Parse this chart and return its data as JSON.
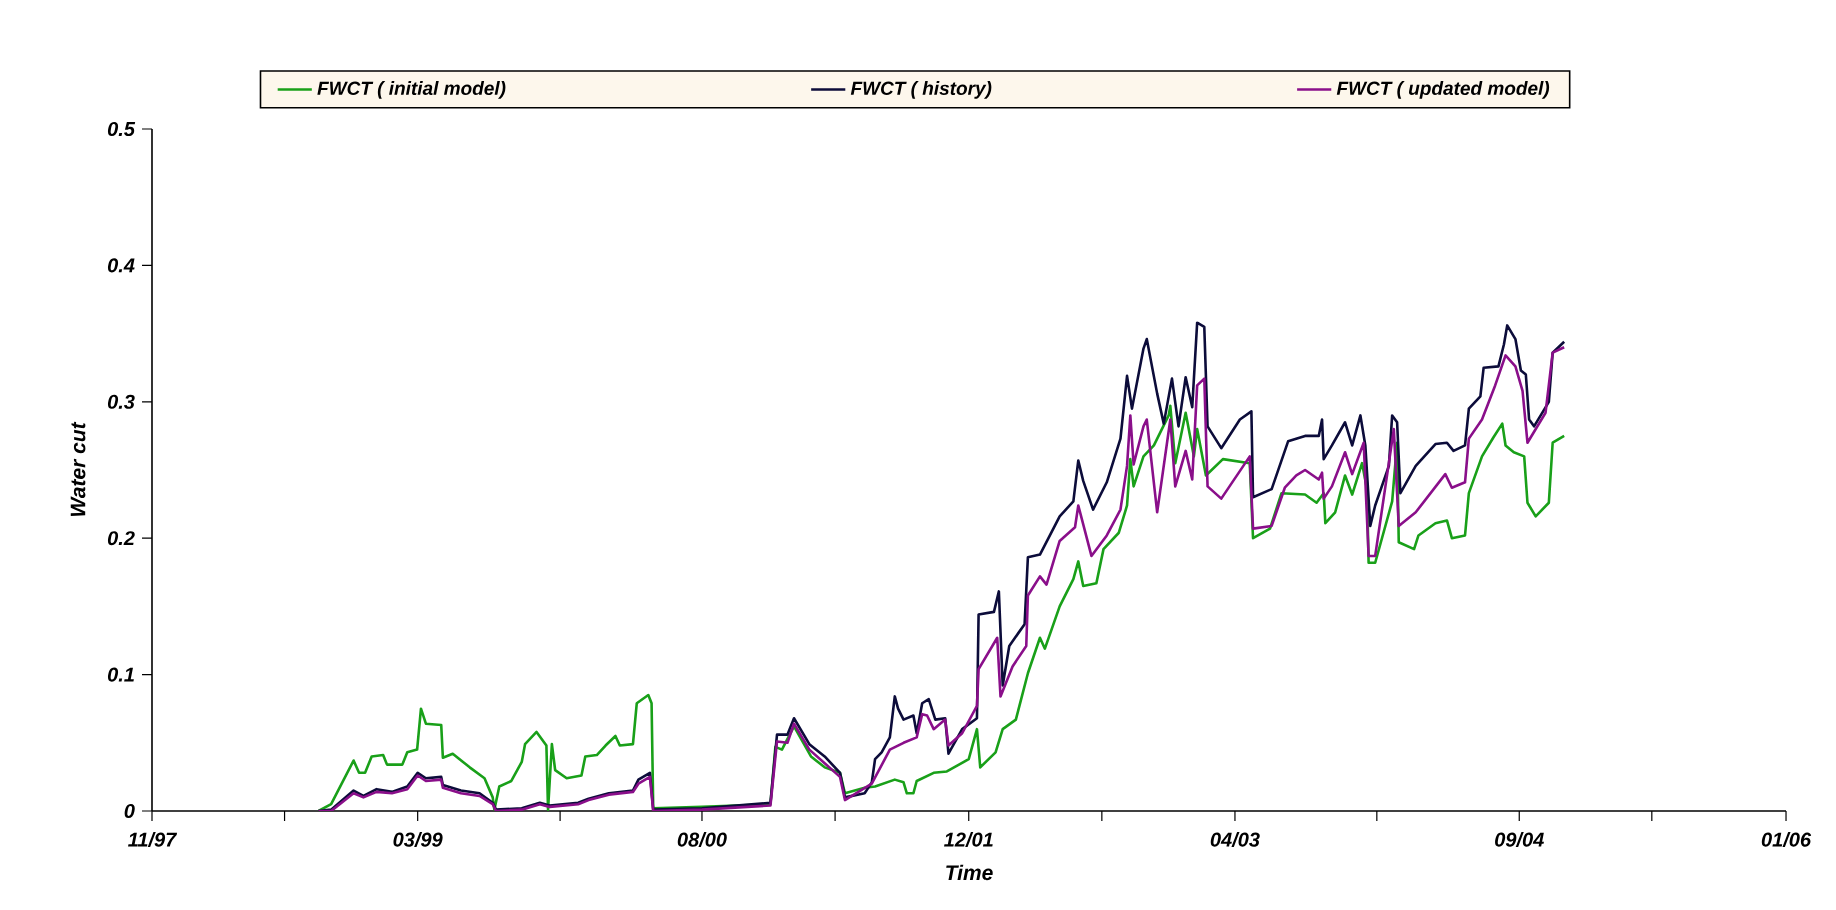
{
  "chart_data": {
    "type": "line",
    "xlabel": "Time",
    "ylabel": "Water cut",
    "legend": "top",
    "marker": "none",
    "line_style": "solid",
    "grid": false,
    "xlim": [
      "1997-11-01",
      "2006-01-01"
    ],
    "xticks": [
      {
        "value": "1997-11-01",
        "label": "11/97"
      },
      {
        "value": "1998-07-01",
        "label": null
      },
      {
        "value": "1999-03-01",
        "label": "03/99"
      },
      {
        "value": "1999-11-16",
        "label": null
      },
      {
        "value": "2000-08-01",
        "label": "08/00"
      },
      {
        "value": "2001-04-01",
        "label": null
      },
      {
        "value": "2001-12-01",
        "label": "12/01"
      },
      {
        "value": "2002-08-01",
        "label": null
      },
      {
        "value": "2003-04-01",
        "label": "04/03"
      },
      {
        "value": "2003-12-16",
        "label": null
      },
      {
        "value": "2004-09-01",
        "label": "09/04"
      },
      {
        "value": "2005-05-01",
        "label": null
      },
      {
        "value": "2006-01-01",
        "label": "01/06"
      }
    ],
    "ylim": [
      0,
      0.5
    ],
    "yticks": [
      0,
      0.1,
      0.2,
      0.3,
      0.4,
      0.5
    ],
    "series": [
      {
        "name": "FWCT ( initial model)",
        "color": "#19a019",
        "x": [
          "1998-09-01",
          "1998-09-24",
          "1998-11-04",
          "1998-11-14",
          "1998-11-25",
          "1998-12-07",
          "1998-12-28",
          "1999-01-04",
          "1999-02-01",
          "1999-02-10",
          "1999-02-28",
          "1999-03-07",
          "1999-03-16",
          "1999-04-13",
          "1999-04-16",
          "1999-05-04",
          "1999-06-04",
          "1999-07-01",
          "1999-07-16",
          "1999-07-19",
          "1999-07-28",
          "1999-08-19",
          "1999-09-07",
          "1999-09-13",
          "1999-10-04",
          "1999-10-22",
          "1999-10-25",
          "1999-11-01",
          "1999-11-07",
          "1999-11-28",
          "1999-12-25",
          "2000-01-01",
          "2000-01-22",
          "2000-02-07",
          "2000-02-25",
          "2000-03-04",
          "2000-03-28",
          "2000-04-04",
          "2000-04-25",
          "2000-05-01",
          "2000-05-04",
          "2000-08-01",
          "2000-12-04",
          "2000-12-13",
          "2000-12-25",
          "2001-01-16",
          "2001-02-16",
          "2001-03-13",
          "2001-04-10",
          "2001-04-19",
          "2001-05-25",
          "2001-06-13",
          "2001-07-19",
          "2001-08-04",
          "2001-08-10",
          "2001-08-22",
          "2001-08-28",
          "2001-09-28",
          "2001-10-22",
          "2001-12-01",
          "2001-12-16",
          "2001-12-22",
          "2002-01-19",
          "2002-02-01",
          "2002-02-25",
          "2002-03-19",
          "2002-04-10",
          "2002-04-19",
          "2002-05-16",
          "2002-06-10",
          "2002-06-19",
          "2002-06-28",
          "2002-07-22",
          "2002-08-04",
          "2002-09-01",
          "2002-09-16",
          "2002-09-22",
          "2002-09-28",
          "2002-10-16",
          "2002-11-04",
          "2002-12-01",
          "2002-12-04",
          "2002-12-13",
          "2003-01-01",
          "2003-01-16",
          "2003-01-22",
          "2003-02-07",
          "2003-03-10",
          "2003-04-28",
          "2003-05-04",
          "2003-06-04",
          "2003-06-25",
          "2003-08-07",
          "2003-08-28",
          "2003-09-10",
          "2003-09-13",
          "2003-10-01",
          "2003-10-19",
          "2003-11-01",
          "2003-11-19",
          "2003-11-28",
          "2003-12-01",
          "2003-12-13",
          "2004-01-13",
          "2004-01-22",
          "2004-01-25",
          "2004-02-22",
          "2004-03-01",
          "2004-04-01",
          "2004-04-22",
          "2004-05-01",
          "2004-05-25",
          "2004-06-01",
          "2004-06-25",
          "2004-07-16",
          "2004-08-01",
          "2004-08-07",
          "2004-08-22",
          "2004-09-10",
          "2004-09-16",
          "2004-10-01",
          "2004-10-25",
          "2004-11-01",
          "2004-11-22"
        ],
        "values": [
          0,
          0.005,
          0.037,
          0.028,
          0.028,
          0.04,
          0.041,
          0.034,
          0.034,
          0.043,
          0.045,
          0.075,
          0.064,
          0.063,
          0.039,
          0.042,
          0.032,
          0.024,
          0.01,
          0.001,
          0.018,
          0.022,
          0.036,
          0.049,
          0.058,
          0.048,
          0.001,
          0.049,
          0.03,
          0.024,
          0.026,
          0.04,
          0.041,
          0.048,
          0.055,
          0.048,
          0.049,
          0.079,
          0.085,
          0.079,
          0.002,
          0.003,
          0.005,
          0.047,
          0.045,
          0.062,
          0.04,
          0.032,
          0.028,
          0.013,
          0.017,
          0.018,
          0.023,
          0.021,
          0.013,
          0.013,
          0.022,
          0.028,
          0.029,
          0.038,
          0.06,
          0.032,
          0.043,
          0.06,
          0.067,
          0.101,
          0.127,
          0.119,
          0.15,
          0.17,
          0.183,
          0.165,
          0.167,
          0.192,
          0.204,
          0.224,
          0.258,
          0.238,
          0.26,
          0.268,
          0.29,
          0.297,
          0.255,
          0.292,
          0.26,
          0.28,
          0.246,
          0.258,
          0.255,
          0.2,
          0.207,
          0.233,
          0.232,
          0.226,
          0.233,
          0.211,
          0.219,
          0.246,
          0.232,
          0.255,
          0.236,
          0.182,
          0.182,
          0.227,
          0.27,
          0.197,
          0.192,
          0.202,
          0.211,
          0.213,
          0.2,
          0.202,
          0.233,
          0.26,
          0.274,
          0.284,
          0.268,
          0.263,
          0.26,
          0.226,
          0.216,
          0.226,
          0.27,
          0.275
        ]
      },
      {
        "name": "FWCT ( history)",
        "color": "#0c0c3a",
        "x": [
          "1998-09-01",
          "1998-09-24",
          "1998-11-04",
          "1998-11-22",
          "1998-12-16",
          "1999-01-13",
          "1999-02-10",
          "1999-03-01",
          "1999-03-16",
          "1999-04-13",
          "1999-04-16",
          "1999-05-19",
          "1999-06-22",
          "1999-07-16",
          "1999-07-22",
          "1999-09-07",
          "1999-10-10",
          "1999-10-28",
          "1999-12-19",
          "2000-01-07",
          "2000-02-13",
          "2000-03-28",
          "2000-04-07",
          "2000-04-28",
          "2000-05-04",
          "2000-08-01",
          "2000-12-04",
          "2000-12-16",
          "2001-01-04",
          "2001-01-16",
          "2001-02-13",
          "2001-03-13",
          "2001-04-10",
          "2001-04-19",
          "2001-05-25",
          "2001-06-07",
          "2001-06-13",
          "2001-06-25",
          "2001-07-10",
          "2001-07-19",
          "2001-07-25",
          "2001-08-04",
          "2001-08-22",
          "2001-08-28",
          "2001-09-07",
          "2001-09-19",
          "2001-10-01",
          "2001-10-19",
          "2001-10-25",
          "2001-11-19",
          "2001-12-16",
          "2001-12-19",
          "2002-01-16",
          "2002-01-25",
          "2002-02-01",
          "2002-02-13",
          "2002-03-13",
          "2002-03-19",
          "2002-04-10",
          "2002-05-16",
          "2002-06-10",
          "2002-06-19",
          "2002-06-28",
          "2002-07-16",
          "2002-08-10",
          "2002-09-04",
          "2002-09-16",
          "2002-09-25",
          "2002-10-16",
          "2002-10-22",
          "2002-11-10",
          "2002-11-22",
          "2002-12-07",
          "2002-12-19",
          "2003-01-01",
          "2003-01-13",
          "2003-01-22",
          "2003-02-04",
          "2003-02-10",
          "2003-03-07",
          "2003-04-10",
          "2003-05-01",
          "2003-05-04",
          "2003-06-07",
          "2003-07-07",
          "2003-08-07",
          "2003-09-01",
          "2003-09-07",
          "2003-09-10",
          "2003-09-25",
          "2003-10-19",
          "2003-11-01",
          "2003-11-16",
          "2003-11-25",
          "2003-12-04",
          "2003-12-13",
          "2004-01-07",
          "2004-01-13",
          "2004-01-22",
          "2004-01-28",
          "2004-02-25",
          "2004-04-01",
          "2004-04-22",
          "2004-05-04",
          "2004-05-25",
          "2004-06-01",
          "2004-06-22",
          "2004-06-28",
          "2004-07-25",
          "2004-08-04",
          "2004-08-10",
          "2004-08-25",
          "2004-09-04",
          "2004-09-13",
          "2004-09-19",
          "2004-09-28",
          "2004-10-25",
          "2004-11-01",
          "2004-11-22"
        ],
        "values": [
          0,
          0.001,
          0.015,
          0.011,
          0.016,
          0.014,
          0.018,
          0.028,
          0.024,
          0.025,
          0.019,
          0.015,
          0.013,
          0.006,
          0.001,
          0.002,
          0.006,
          0.004,
          0.006,
          0.009,
          0.013,
          0.015,
          0.023,
          0.028,
          0.001,
          0.002,
          0.006,
          0.056,
          0.056,
          0.068,
          0.049,
          0.04,
          0.028,
          0.01,
          0.013,
          0.021,
          0.038,
          0.043,
          0.054,
          0.084,
          0.075,
          0.067,
          0.07,
          0.057,
          0.079,
          0.082,
          0.067,
          0.068,
          0.042,
          0.06,
          0.068,
          0.144,
          0.146,
          0.161,
          0.092,
          0.121,
          0.137,
          0.186,
          0.188,
          0.216,
          0.227,
          0.257,
          0.242,
          0.221,
          0.241,
          0.273,
          0.319,
          0.295,
          0.339,
          0.346,
          0.306,
          0.284,
          0.317,
          0.282,
          0.318,
          0.296,
          0.358,
          0.355,
          0.282,
          0.266,
          0.287,
          0.293,
          0.23,
          0.236,
          0.271,
          0.275,
          0.275,
          0.287,
          0.258,
          0.268,
          0.285,
          0.268,
          0.29,
          0.268,
          0.209,
          0.224,
          0.253,
          0.29,
          0.285,
          0.233,
          0.253,
          0.269,
          0.27,
          0.264,
          0.268,
          0.295,
          0.304,
          0.325,
          0.326,
          0.342,
          0.356,
          0.346,
          0.323,
          0.32,
          0.287,
          0.282,
          0.3,
          0.336,
          0.344
        ]
      },
      {
        "name": "FWCT ( updated model)",
        "color": "#8a0f8a",
        "x": [
          "1998-09-01",
          "1998-09-24",
          "1998-11-04",
          "1998-11-22",
          "1998-12-16",
          "1999-01-13",
          "1999-02-10",
          "1999-03-01",
          "1999-03-16",
          "1999-04-13",
          "1999-04-16",
          "1999-05-19",
          "1999-06-22",
          "1999-07-16",
          "1999-07-22",
          "1999-09-07",
          "1999-10-10",
          "1999-10-28",
          "1999-12-19",
          "2000-01-07",
          "2000-02-13",
          "2000-03-28",
          "2000-04-07",
          "2000-04-28",
          "2000-05-04",
          "2000-08-01",
          "2000-12-04",
          "2000-12-16",
          "2001-01-04",
          "2001-01-16",
          "2001-02-13",
          "2001-03-13",
          "2001-04-10",
          "2001-04-19",
          "2001-06-07",
          "2001-07-10",
          "2001-08-04",
          "2001-08-28",
          "2001-09-07",
          "2001-09-16",
          "2001-09-28",
          "2001-10-19",
          "2001-10-25",
          "2001-11-19",
          "2001-12-16",
          "2001-12-19",
          "2002-01-22",
          "2002-01-28",
          "2002-02-19",
          "2002-03-16",
          "2002-03-19",
          "2002-04-10",
          "2002-04-22",
          "2002-05-16",
          "2002-06-13",
          "2002-06-19",
          "2002-07-13",
          "2002-08-10",
          "2002-09-04",
          "2002-09-16",
          "2002-09-22",
          "2002-09-28",
          "2002-10-16",
          "2002-10-22",
          "2002-11-10",
          "2002-12-04",
          "2002-12-13",
          "2003-01-01",
          "2003-01-13",
          "2003-01-22",
          "2003-02-04",
          "2003-02-10",
          "2003-03-07",
          "2003-04-28",
          "2003-05-04",
          "2003-06-07",
          "2003-07-01",
          "2003-07-22",
          "2003-08-07",
          "2003-09-01",
          "2003-09-07",
          "2003-09-10",
          "2003-09-25",
          "2003-10-19",
          "2003-11-01",
          "2003-11-22",
          "2003-12-01",
          "2003-12-13",
          "2004-01-16",
          "2004-01-25",
          "2004-02-25",
          "2004-04-19",
          "2004-05-01",
          "2004-05-25",
          "2004-06-01",
          "2004-06-25",
          "2004-07-19",
          "2004-08-07",
          "2004-08-25",
          "2004-09-07",
          "2004-09-16",
          "2004-10-19",
          "2004-11-01",
          "2004-11-22"
        ],
        "values": [
          0,
          0.0,
          0.013,
          0.01,
          0.014,
          0.013,
          0.016,
          0.026,
          0.022,
          0.023,
          0.017,
          0.013,
          0.011,
          0.005,
          0.0,
          0.001,
          0.005,
          0.003,
          0.005,
          0.008,
          0.012,
          0.014,
          0.02,
          0.025,
          0.0,
          0.001,
          0.004,
          0.051,
          0.05,
          0.064,
          0.045,
          0.035,
          0.025,
          0.008,
          0.02,
          0.045,
          0.05,
          0.054,
          0.071,
          0.07,
          0.06,
          0.067,
          0.048,
          0.057,
          0.077,
          0.104,
          0.127,
          0.084,
          0.106,
          0.121,
          0.158,
          0.172,
          0.166,
          0.198,
          0.208,
          0.224,
          0.187,
          0.202,
          0.221,
          0.253,
          0.29,
          0.254,
          0.282,
          0.287,
          0.219,
          0.287,
          0.238,
          0.264,
          0.243,
          0.312,
          0.317,
          0.238,
          0.229,
          0.26,
          0.207,
          0.209,
          0.237,
          0.246,
          0.25,
          0.243,
          0.248,
          0.229,
          0.238,
          0.263,
          0.247,
          0.27,
          0.187,
          0.187,
          0.28,
          0.209,
          0.219,
          0.247,
          0.237,
          0.241,
          0.273,
          0.287,
          0.312,
          0.334,
          0.326,
          0.308,
          0.27,
          0.292,
          0.336,
          0.34
        ]
      }
    ]
  }
}
